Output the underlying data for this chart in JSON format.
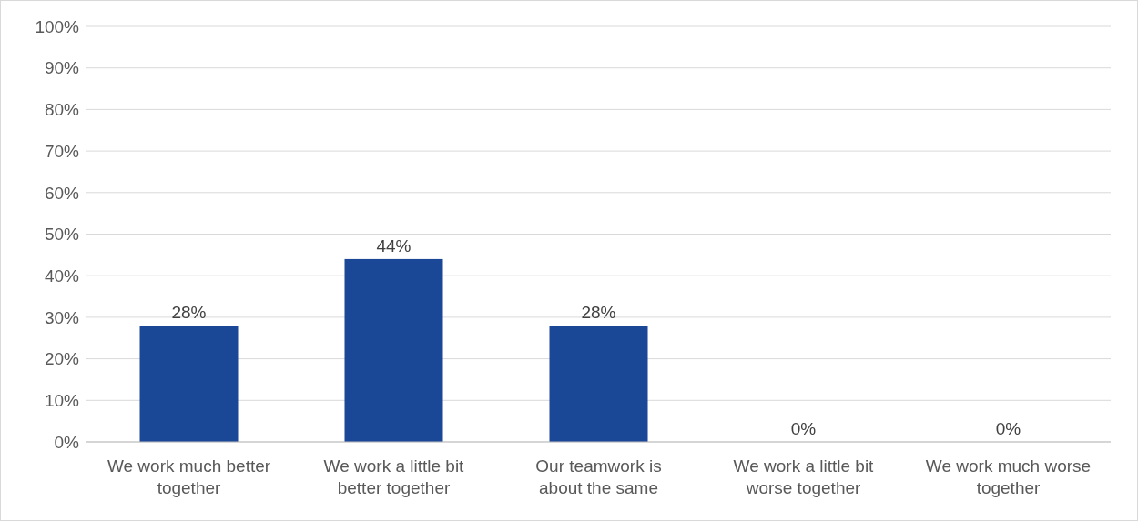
{
  "chart_data": {
    "type": "bar",
    "categories": [
      "We work much better together",
      "We work a little bit better together",
      "Our teamwork is about the same",
      "We work a little bit worse together",
      "We work much worse together"
    ],
    "values": [
      28,
      44,
      28,
      0,
      0
    ],
    "value_labels": [
      "28%",
      "44%",
      "28%",
      "0%",
      "0%"
    ],
    "color": "#1a4796",
    "ylim": [
      0,
      100
    ],
    "yticks": [
      {
        "value": 0,
        "label": "0%"
      },
      {
        "value": 10,
        "label": "10%"
      },
      {
        "value": 20,
        "label": "20%"
      },
      {
        "value": 30,
        "label": "30%"
      },
      {
        "value": 40,
        "label": "40%"
      },
      {
        "value": 50,
        "label": "50%"
      },
      {
        "value": 60,
        "label": "60%"
      },
      {
        "value": 70,
        "label": "70%"
      },
      {
        "value": 80,
        "label": "80%"
      },
      {
        "value": 90,
        "label": "90%"
      },
      {
        "value": 100,
        "label": "100%"
      }
    ],
    "grid": "y",
    "legend": false
  }
}
